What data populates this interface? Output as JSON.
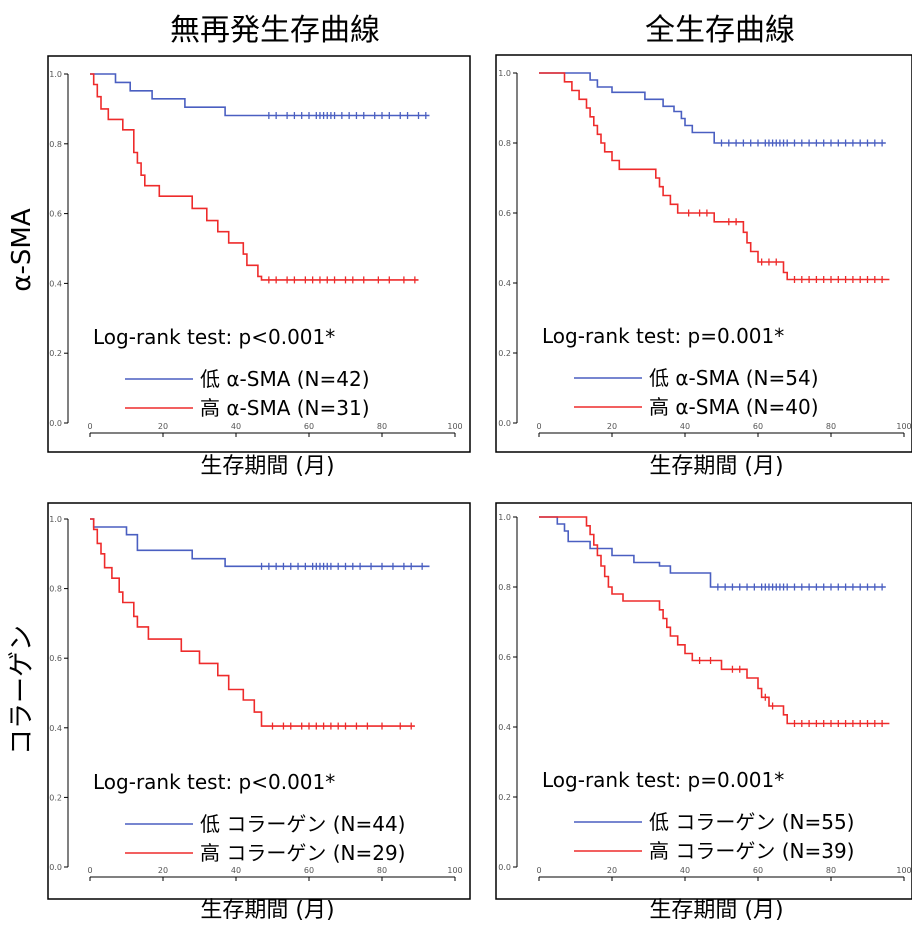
{
  "column_titles": [
    "無再発生存曲線",
    "全生存曲線"
  ],
  "row_labels": [
    "α-SMA",
    "コラーゲン"
  ],
  "colors": {
    "low": "#4a5fc1",
    "high": "#ee2b2b",
    "axis": "#000000",
    "tick_label": "#555555"
  },
  "chart_data": [
    {
      "type": "line",
      "panel": "α-SMA / 無再発生存曲線",
      "xlabel": "生存期間 (月)",
      "ylabel": "",
      "xlim": [
        0,
        100
      ],
      "ylim": [
        0,
        1
      ],
      "xticks": [
        "0",
        "20",
        "40",
        "60",
        "80",
        "100"
      ],
      "yticks": [
        "0.0",
        "0.2",
        "0.4",
        "0.6",
        "0.8",
        "1.0"
      ],
      "annotation": "Log-rank test: p<0.001*",
      "series": [
        {
          "key": "low",
          "name": "低 α-SMA (N=42)",
          "steps": [
            [
              0,
              1.0
            ],
            [
              7,
              0.976
            ],
            [
              11,
              0.952
            ],
            [
              17,
              0.929
            ],
            [
              26,
              0.905
            ],
            [
              37,
              0.881
            ]
          ],
          "end": 93,
          "censored": [
            49,
            51,
            54,
            56,
            58,
            60,
            62,
            63,
            64,
            65,
            66,
            67,
            69,
            71,
            73,
            75,
            78,
            80,
            82,
            85,
            87,
            90,
            92
          ]
        },
        {
          "key": "high",
          "name": "高 α-SMA (N=31)",
          "steps": [
            [
              0,
              1.0
            ],
            [
              1,
              0.97
            ],
            [
              2,
              0.935
            ],
            [
              3,
              0.9
            ],
            [
              5,
              0.87
            ],
            [
              9,
              0.84
            ],
            [
              12,
              0.775
            ],
            [
              13,
              0.745
            ],
            [
              14,
              0.71
            ],
            [
              15,
              0.68
            ],
            [
              19,
              0.65
            ],
            [
              28,
              0.615
            ],
            [
              32,
              0.58
            ],
            [
              35,
              0.548
            ],
            [
              38,
              0.516
            ],
            [
              42,
              0.484
            ],
            [
              43,
              0.452
            ],
            [
              46,
              0.42
            ],
            [
              47,
              0.41
            ]
          ],
          "end": 90,
          "censored": [
            49,
            51,
            54,
            56,
            59,
            61,
            63,
            65,
            67,
            70,
            72,
            75,
            79,
            82,
            86,
            89
          ]
        }
      ]
    },
    {
      "type": "line",
      "panel": "α-SMA / 全生存曲線",
      "xlabel": "生存期間 (月)",
      "ylabel": "",
      "xlim": [
        0,
        100
      ],
      "ylim": [
        0,
        1
      ],
      "xticks": [
        "0",
        "20",
        "40",
        "60",
        "80",
        "100"
      ],
      "yticks": [
        "0.0",
        "0.2",
        "0.4",
        "0.6",
        "0.8",
        "1.0"
      ],
      "annotation": "Log-rank test: p=0.001*",
      "series": [
        {
          "key": "low",
          "name": "低 α-SMA (N=54)",
          "steps": [
            [
              0,
              1.0
            ],
            [
              14,
              0.98
            ],
            [
              16,
              0.96
            ],
            [
              20,
              0.945
            ],
            [
              29,
              0.925
            ],
            [
              34,
              0.905
            ],
            [
              37,
              0.89
            ],
            [
              39,
              0.87
            ],
            [
              40,
              0.85
            ],
            [
              42,
              0.83
            ],
            [
              48,
              0.8
            ]
          ],
          "end": 95,
          "censored": [
            50,
            52,
            54,
            56,
            58,
            60,
            62,
            63,
            64,
            65,
            66,
            67,
            68,
            70,
            72,
            74,
            76,
            78,
            80,
            82,
            84,
            86,
            88,
            90,
            92,
            94
          ]
        },
        {
          "key": "high",
          "name": "高 α-SMA (N=40)",
          "steps": [
            [
              0,
              1.0
            ],
            [
              7,
              0.975
            ],
            [
              9,
              0.95
            ],
            [
              11,
              0.925
            ],
            [
              13,
              0.9
            ],
            [
              14,
              0.875
            ],
            [
              15,
              0.85
            ],
            [
              16,
              0.825
            ],
            [
              17,
              0.8
            ],
            [
              18,
              0.775
            ],
            [
              20,
              0.75
            ],
            [
              22,
              0.725
            ],
            [
              32,
              0.7
            ],
            [
              33,
              0.675
            ],
            [
              34,
              0.65
            ],
            [
              36,
              0.625
            ],
            [
              38,
              0.6
            ],
            [
              48,
              0.575
            ],
            [
              56,
              0.545
            ],
            [
              57,
              0.515
            ],
            [
              58,
              0.49
            ],
            [
              60,
              0.46
            ],
            [
              67,
              0.43
            ],
            [
              68,
              0.41
            ]
          ],
          "end": 96,
          "censored": [
            41,
            44,
            46,
            52,
            54,
            61,
            63,
            65,
            70,
            72,
            74,
            76,
            78,
            80,
            82,
            84,
            86,
            88,
            90,
            92,
            94
          ]
        }
      ]
    },
    {
      "type": "line",
      "panel": "コラーゲン / 無再発生存曲線",
      "xlabel": "生存期間 (月)",
      "ylabel": "",
      "xlim": [
        0,
        100
      ],
      "ylim": [
        0,
        1
      ],
      "xticks": [
        "0",
        "20",
        "40",
        "60",
        "80",
        "100"
      ],
      "yticks": [
        "0.0",
        "0.2",
        "0.4",
        "0.6",
        "0.8",
        "1.0"
      ],
      "annotation": "Log-rank test: p<0.001*",
      "series": [
        {
          "key": "low",
          "name": "低 コラーゲン (N=44)",
          "steps": [
            [
              0,
              1.0
            ],
            [
              1,
              0.977
            ],
            [
              10,
              0.955
            ],
            [
              13,
              0.91
            ],
            [
              28,
              0.886
            ],
            [
              37,
              0.864
            ]
          ],
          "end": 93,
          "censored": [
            47,
            49,
            51,
            53,
            55,
            57,
            59,
            61,
            62,
            63,
            64,
            65,
            66,
            68,
            70,
            72,
            74,
            77,
            80,
            83,
            86,
            88,
            91
          ]
        },
        {
          "key": "high",
          "name": "高 コラーゲン (N=29)",
          "steps": [
            [
              0,
              1.0
            ],
            [
              1,
              0.97
            ],
            [
              2,
              0.93
            ],
            [
              3,
              0.9
            ],
            [
              4,
              0.86
            ],
            [
              6,
              0.83
            ],
            [
              8,
              0.79
            ],
            [
              9,
              0.76
            ],
            [
              12,
              0.72
            ],
            [
              13,
              0.69
            ],
            [
              16,
              0.655
            ],
            [
              25,
              0.62
            ],
            [
              30,
              0.585
            ],
            [
              35,
              0.55
            ],
            [
              38,
              0.51
            ],
            [
              42,
              0.48
            ],
            [
              45,
              0.445
            ],
            [
              47,
              0.405
            ]
          ],
          "end": 89,
          "censored": [
            50,
            53,
            55,
            58,
            60,
            62,
            64,
            66,
            68,
            70,
            73,
            76,
            80,
            85,
            88
          ]
        }
      ]
    },
    {
      "type": "line",
      "panel": "コラーゲン / 全生存曲線",
      "xlabel": "生存期間 (月)",
      "ylabel": "",
      "xlim": [
        0,
        100
      ],
      "ylim": [
        0,
        1
      ],
      "xticks": [
        "0",
        "20",
        "40",
        "60",
        "80",
        "100"
      ],
      "yticks": [
        "0.0",
        "0.2",
        "0.4",
        "0.6",
        "0.8",
        "1.0"
      ],
      "annotation": "Log-rank test: p=0.001*",
      "series": [
        {
          "key": "low",
          "name": "低 コラーゲン (N=55)",
          "steps": [
            [
              0,
              1.0
            ],
            [
              5,
              0.98
            ],
            [
              7,
              0.96
            ],
            [
              8,
              0.93
            ],
            [
              14,
              0.91
            ],
            [
              20,
              0.89
            ],
            [
              26,
              0.87
            ],
            [
              33,
              0.86
            ],
            [
              36,
              0.84
            ],
            [
              47,
              0.8
            ]
          ],
          "end": 95,
          "censored": [
            49,
            51,
            53,
            55,
            57,
            59,
            61,
            62,
            63,
            64,
            65,
            66,
            67,
            68,
            70,
            72,
            74,
            76,
            78,
            80,
            82,
            84,
            86,
            88,
            90,
            92,
            94
          ]
        },
        {
          "key": "high",
          "name": "高 コラーゲン (N=39)",
          "steps": [
            [
              0,
              1.0
            ],
            [
              13,
              0.975
            ],
            [
              14,
              0.95
            ],
            [
              15,
              0.92
            ],
            [
              16,
              0.89
            ],
            [
              17,
              0.86
            ],
            [
              18,
              0.83
            ],
            [
              19,
              0.8
            ],
            [
              20,
              0.78
            ],
            [
              23,
              0.76
            ],
            [
              33,
              0.735
            ],
            [
              34,
              0.71
            ],
            [
              35,
              0.685
            ],
            [
              36,
              0.66
            ],
            [
              38,
              0.635
            ],
            [
              40,
              0.61
            ],
            [
              42,
              0.59
            ],
            [
              50,
              0.565
            ],
            [
              57,
              0.54
            ],
            [
              60,
              0.51
            ],
            [
              61,
              0.485
            ],
            [
              63,
              0.46
            ],
            [
              67,
              0.435
            ],
            [
              68,
              0.41
            ]
          ],
          "end": 96,
          "censored": [
            44,
            47,
            53,
            55,
            62,
            64,
            70,
            72,
            74,
            76,
            78,
            80,
            82,
            84,
            86,
            88,
            90,
            92,
            94
          ]
        }
      ]
    }
  ]
}
